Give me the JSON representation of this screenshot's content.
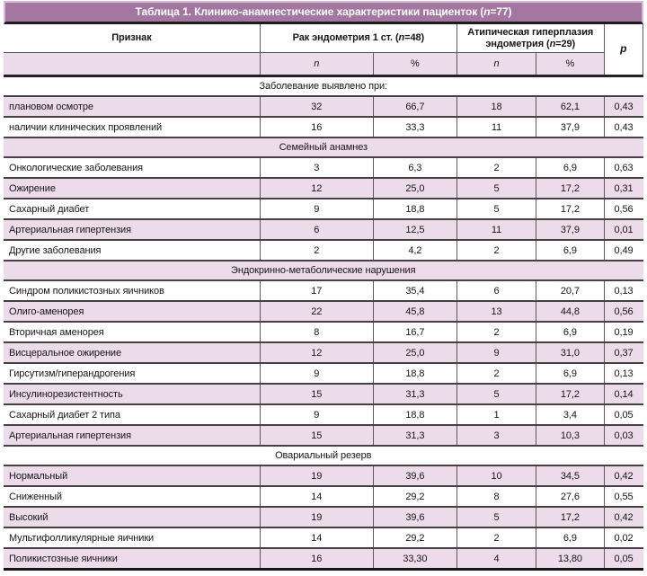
{
  "title": {
    "before": "Таблица 1. Клинико-анамнестические характеристики пациенток (",
    "n": "n",
    "after": "=77)"
  },
  "header": {
    "feature": "Признак",
    "groups": [
      {
        "before": "Рак эндометрия 1 ст. (",
        "n": "n",
        "after": "=48)"
      },
      {
        "before": "Атипическая гиперплазия эндометрия (",
        "n": "n",
        "after": "=29)"
      }
    ],
    "p": "p",
    "sub_n": "n",
    "sub_pct": "%"
  },
  "sections": [
    {
      "header": "Заболевание выявлено при:",
      "rows": [
        {
          "label": "плановом осмотре",
          "n1": "32",
          "pct1": "66,7",
          "n2": "18",
          "pct2": "62,1",
          "p": "0,43"
        },
        {
          "label": "наличии клинических проявлений",
          "n1": "16",
          "pct1": "33,3",
          "n2": "11",
          "pct2": "37,9",
          "p": "0,43"
        }
      ]
    },
    {
      "header": "Семейный анамнез",
      "rows": [
        {
          "label": "Онкологические заболевания",
          "n1": "3",
          "pct1": "6,3",
          "n2": "2",
          "pct2": "6,9",
          "p": "0,63"
        },
        {
          "label": "Ожирение",
          "n1": "12",
          "pct1": "25,0",
          "n2": "5",
          "pct2": "17,2",
          "p": "0,31"
        },
        {
          "label": "Сахарный диабет",
          "n1": "9",
          "pct1": "18,8",
          "n2": "5",
          "pct2": "17,2",
          "p": "0,56"
        },
        {
          "label": "Артериальная гипертензия",
          "n1": "6",
          "pct1": "12,5",
          "n2": "11",
          "pct2": "37,9",
          "p": "0,01"
        },
        {
          "label": "Другие заболевания",
          "n1": "2",
          "pct1": "4,2",
          "n2": "2",
          "pct2": "6,9",
          "p": "0,49"
        }
      ]
    },
    {
      "header": "Эндокринно-метаболические нарушения",
      "rows": [
        {
          "label": "Синдром поликистозных яичников",
          "n1": "17",
          "pct1": "35,4",
          "n2": "6",
          "pct2": "20,7",
          "p": "0,13"
        },
        {
          "label": "Олиго-аменорея",
          "n1": "22",
          "pct1": "45,8",
          "n2": "13",
          "pct2": "44,8",
          "p": "0,56"
        },
        {
          "label": "Вторичная аменорея",
          "n1": "8",
          "pct1": "16,7",
          "n2": "2",
          "pct2": "6,9",
          "p": "0,19"
        },
        {
          "label": "Висцеральное ожирение",
          "n1": "12",
          "pct1": "25,0",
          "n2": "9",
          "pct2": "31,0",
          "p": "0,37"
        },
        {
          "label": "Гирсутизм/гиперандрогения",
          "n1": "9",
          "pct1": "18,8",
          "n2": "2",
          "pct2": "6,9",
          "p": "0,13"
        },
        {
          "label": "Инсулинорезистентность",
          "n1": "15",
          "pct1": "31,3",
          "n2": "5",
          "pct2": "17,2",
          "p": "0,14"
        },
        {
          "label": "Сахарный диабет 2 типа",
          "n1": "9",
          "pct1": "18,8",
          "n2": "1",
          "pct2": "3,4",
          "p": "0,05"
        },
        {
          "label": "Артериальная гипертензия",
          "n1": "15",
          "pct1": "31,3",
          "n2": "3",
          "pct2": "10,3",
          "p": "0,03"
        }
      ]
    },
    {
      "header": "Овариальный резерв",
      "rows": [
        {
          "label": "Нормальный",
          "n1": "19",
          "pct1": "39,6",
          "n2": "10",
          "pct2": "34,5",
          "p": "0,42"
        },
        {
          "label": "Сниженный",
          "n1": "14",
          "pct1": "29,2",
          "n2": "8",
          "pct2": "27,6",
          "p": "0,55"
        },
        {
          "label": "Высокий",
          "n1": "19",
          "pct1": "39,6",
          "n2": "5",
          "pct2": "17,2",
          "p": "0,42"
        },
        {
          "label": "Мультифолликулярные яичники",
          "n1": "14",
          "pct1": "29,2",
          "n2": "2",
          "pct2": "6,9",
          "p": "0,02"
        },
        {
          "label": "Поликистозные яичники",
          "n1": "16",
          "pct1": "33,30",
          "n2": "4",
          "pct2": "13,80",
          "p": "0,05"
        }
      ]
    }
  ],
  "colors": {
    "title_bg": "#a477a1",
    "row_pink": "#ecdbe9",
    "row_white": "#ffffff",
    "rule_dark": "#473f44",
    "rule_heavy": "#211b1f"
  }
}
